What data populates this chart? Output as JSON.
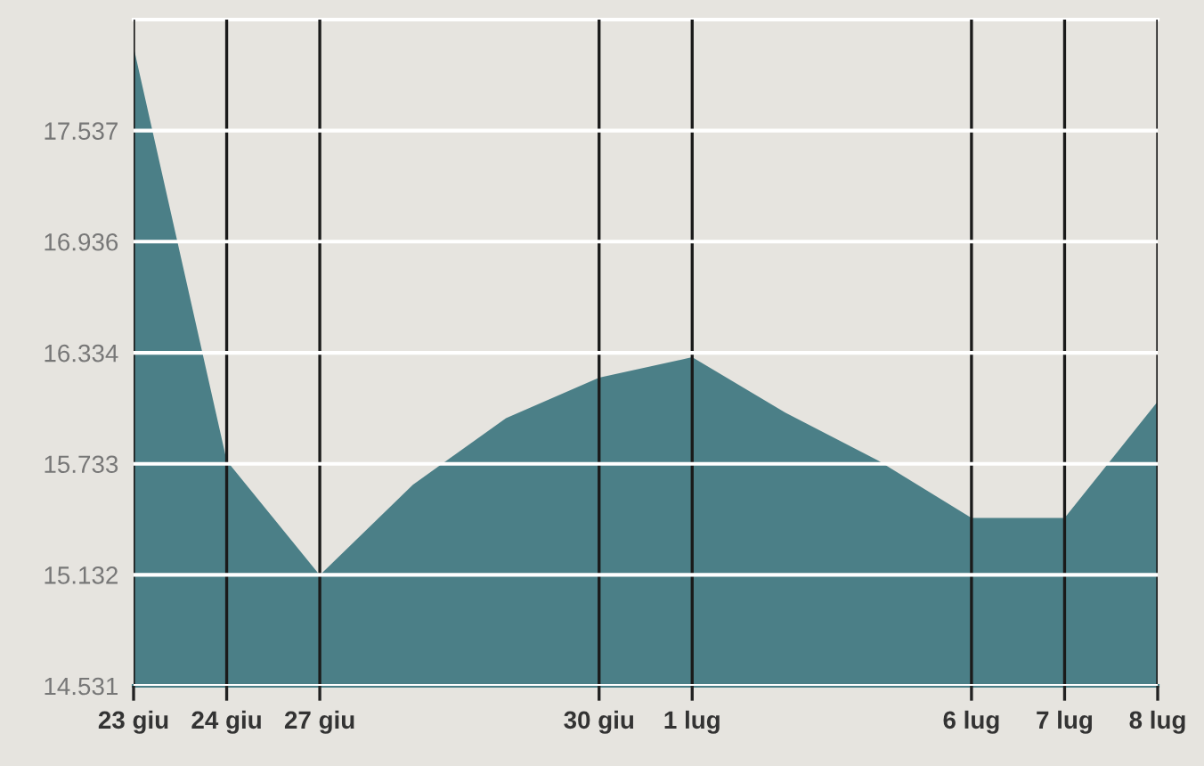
{
  "chart_data": {
    "type": "area",
    "categories": [
      "23 giu",
      "24 giu",
      "27 giu",
      null,
      null,
      "30 giu",
      "1 lug",
      null,
      null,
      "6 lug",
      "7 lug",
      "8 lug"
    ],
    "series": [
      {
        "color": "#4b7f87",
        "values": [
          17.99,
          15.75,
          15.13,
          15.62,
          15.98,
          16.2,
          16.31,
          16.01,
          15.75,
          15.44,
          15.44,
          16.07
        ]
      }
    ],
    "ylim": [
      14.531,
      18.138
    ],
    "yticks": [
      14.531,
      15.132,
      15.733,
      16.334,
      16.936,
      17.537
    ],
    "grid": true,
    "legend": false
  }
}
